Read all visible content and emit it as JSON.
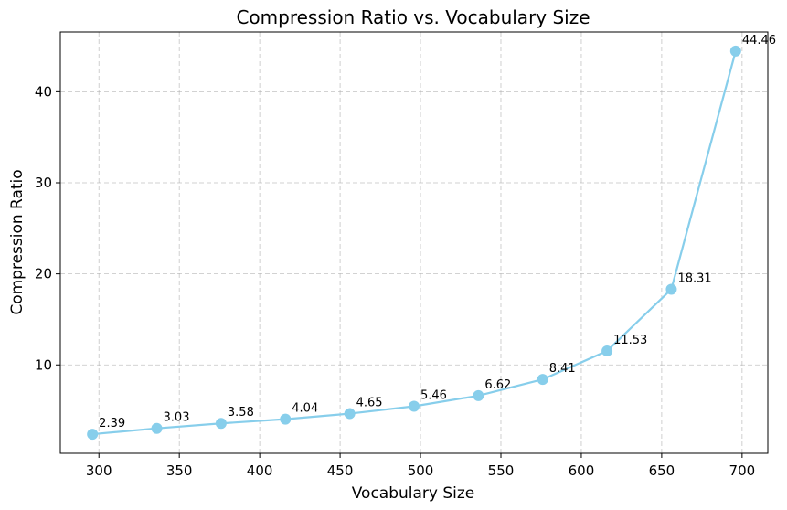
{
  "chart_data": {
    "type": "line",
    "title": "Compression Ratio vs. Vocabulary Size",
    "xlabel": "Vocabulary Size",
    "ylabel": "Compression Ratio",
    "x": [
      296,
      336,
      376,
      416,
      456,
      496,
      536,
      576,
      616,
      656,
      696
    ],
    "series": [
      {
        "values": [
          2.39,
          3.03,
          3.58,
          4.04,
          4.65,
          5.46,
          6.62,
          8.41,
          11.53,
          18.31,
          44.46
        ],
        "labels": [
          "2.39",
          "3.03",
          "3.58",
          "4.04",
          "4.65",
          "5.46",
          "6.62",
          "8.41",
          "11.53",
          "18.31",
          "44.46"
        ],
        "color": "#87ceeb"
      }
    ],
    "xticks": [
      300,
      350,
      400,
      450,
      500,
      550,
      600,
      650,
      700
    ],
    "yticks": [
      10,
      20,
      30,
      40
    ],
    "xlim": [
      276,
      716
    ],
    "ylim": [
      0.29,
      46.56
    ],
    "grid": true,
    "marker": "circle"
  }
}
